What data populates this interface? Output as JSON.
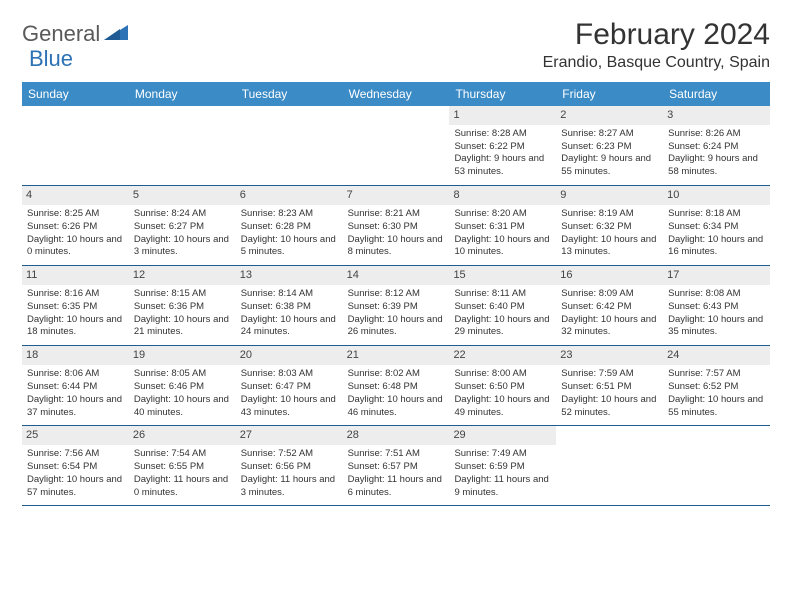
{
  "brand": {
    "text1": "General",
    "text2": "Blue",
    "logo_color": "#2d72b5"
  },
  "header": {
    "month_title": "February 2024",
    "location": "Erandio, Basque Country, Spain"
  },
  "colors": {
    "header_bg": "#3b8bc7",
    "header_text": "#ffffff",
    "row_border": "#1f5d8f",
    "daynum_bg": "#ededed",
    "body_text": "#333333"
  },
  "day_names": [
    "Sunday",
    "Monday",
    "Tuesday",
    "Wednesday",
    "Thursday",
    "Friday",
    "Saturday"
  ],
  "weeks": [
    [
      {
        "n": "",
        "sunrise": "",
        "sunset": "",
        "daylight": ""
      },
      {
        "n": "",
        "sunrise": "",
        "sunset": "",
        "daylight": ""
      },
      {
        "n": "",
        "sunrise": "",
        "sunset": "",
        "daylight": ""
      },
      {
        "n": "",
        "sunrise": "",
        "sunset": "",
        "daylight": ""
      },
      {
        "n": "1",
        "sunrise": "Sunrise: 8:28 AM",
        "sunset": "Sunset: 6:22 PM",
        "daylight": "Daylight: 9 hours and 53 minutes."
      },
      {
        "n": "2",
        "sunrise": "Sunrise: 8:27 AM",
        "sunset": "Sunset: 6:23 PM",
        "daylight": "Daylight: 9 hours and 55 minutes."
      },
      {
        "n": "3",
        "sunrise": "Sunrise: 8:26 AM",
        "sunset": "Sunset: 6:24 PM",
        "daylight": "Daylight: 9 hours and 58 minutes."
      }
    ],
    [
      {
        "n": "4",
        "sunrise": "Sunrise: 8:25 AM",
        "sunset": "Sunset: 6:26 PM",
        "daylight": "Daylight: 10 hours and 0 minutes."
      },
      {
        "n": "5",
        "sunrise": "Sunrise: 8:24 AM",
        "sunset": "Sunset: 6:27 PM",
        "daylight": "Daylight: 10 hours and 3 minutes."
      },
      {
        "n": "6",
        "sunrise": "Sunrise: 8:23 AM",
        "sunset": "Sunset: 6:28 PM",
        "daylight": "Daylight: 10 hours and 5 minutes."
      },
      {
        "n": "7",
        "sunrise": "Sunrise: 8:21 AM",
        "sunset": "Sunset: 6:30 PM",
        "daylight": "Daylight: 10 hours and 8 minutes."
      },
      {
        "n": "8",
        "sunrise": "Sunrise: 8:20 AM",
        "sunset": "Sunset: 6:31 PM",
        "daylight": "Daylight: 10 hours and 10 minutes."
      },
      {
        "n": "9",
        "sunrise": "Sunrise: 8:19 AM",
        "sunset": "Sunset: 6:32 PM",
        "daylight": "Daylight: 10 hours and 13 minutes."
      },
      {
        "n": "10",
        "sunrise": "Sunrise: 8:18 AM",
        "sunset": "Sunset: 6:34 PM",
        "daylight": "Daylight: 10 hours and 16 minutes."
      }
    ],
    [
      {
        "n": "11",
        "sunrise": "Sunrise: 8:16 AM",
        "sunset": "Sunset: 6:35 PM",
        "daylight": "Daylight: 10 hours and 18 minutes."
      },
      {
        "n": "12",
        "sunrise": "Sunrise: 8:15 AM",
        "sunset": "Sunset: 6:36 PM",
        "daylight": "Daylight: 10 hours and 21 minutes."
      },
      {
        "n": "13",
        "sunrise": "Sunrise: 8:14 AM",
        "sunset": "Sunset: 6:38 PM",
        "daylight": "Daylight: 10 hours and 24 minutes."
      },
      {
        "n": "14",
        "sunrise": "Sunrise: 8:12 AM",
        "sunset": "Sunset: 6:39 PM",
        "daylight": "Daylight: 10 hours and 26 minutes."
      },
      {
        "n": "15",
        "sunrise": "Sunrise: 8:11 AM",
        "sunset": "Sunset: 6:40 PM",
        "daylight": "Daylight: 10 hours and 29 minutes."
      },
      {
        "n": "16",
        "sunrise": "Sunrise: 8:09 AM",
        "sunset": "Sunset: 6:42 PM",
        "daylight": "Daylight: 10 hours and 32 minutes."
      },
      {
        "n": "17",
        "sunrise": "Sunrise: 8:08 AM",
        "sunset": "Sunset: 6:43 PM",
        "daylight": "Daylight: 10 hours and 35 minutes."
      }
    ],
    [
      {
        "n": "18",
        "sunrise": "Sunrise: 8:06 AM",
        "sunset": "Sunset: 6:44 PM",
        "daylight": "Daylight: 10 hours and 37 minutes."
      },
      {
        "n": "19",
        "sunrise": "Sunrise: 8:05 AM",
        "sunset": "Sunset: 6:46 PM",
        "daylight": "Daylight: 10 hours and 40 minutes."
      },
      {
        "n": "20",
        "sunrise": "Sunrise: 8:03 AM",
        "sunset": "Sunset: 6:47 PM",
        "daylight": "Daylight: 10 hours and 43 minutes."
      },
      {
        "n": "21",
        "sunrise": "Sunrise: 8:02 AM",
        "sunset": "Sunset: 6:48 PM",
        "daylight": "Daylight: 10 hours and 46 minutes."
      },
      {
        "n": "22",
        "sunrise": "Sunrise: 8:00 AM",
        "sunset": "Sunset: 6:50 PM",
        "daylight": "Daylight: 10 hours and 49 minutes."
      },
      {
        "n": "23",
        "sunrise": "Sunrise: 7:59 AM",
        "sunset": "Sunset: 6:51 PM",
        "daylight": "Daylight: 10 hours and 52 minutes."
      },
      {
        "n": "24",
        "sunrise": "Sunrise: 7:57 AM",
        "sunset": "Sunset: 6:52 PM",
        "daylight": "Daylight: 10 hours and 55 minutes."
      }
    ],
    [
      {
        "n": "25",
        "sunrise": "Sunrise: 7:56 AM",
        "sunset": "Sunset: 6:54 PM",
        "daylight": "Daylight: 10 hours and 57 minutes."
      },
      {
        "n": "26",
        "sunrise": "Sunrise: 7:54 AM",
        "sunset": "Sunset: 6:55 PM",
        "daylight": "Daylight: 11 hours and 0 minutes."
      },
      {
        "n": "27",
        "sunrise": "Sunrise: 7:52 AM",
        "sunset": "Sunset: 6:56 PM",
        "daylight": "Daylight: 11 hours and 3 minutes."
      },
      {
        "n": "28",
        "sunrise": "Sunrise: 7:51 AM",
        "sunset": "Sunset: 6:57 PM",
        "daylight": "Daylight: 11 hours and 6 minutes."
      },
      {
        "n": "29",
        "sunrise": "Sunrise: 7:49 AM",
        "sunset": "Sunset: 6:59 PM",
        "daylight": "Daylight: 11 hours and 9 minutes."
      },
      {
        "n": "",
        "sunrise": "",
        "sunset": "",
        "daylight": ""
      },
      {
        "n": "",
        "sunrise": "",
        "sunset": "",
        "daylight": ""
      }
    ]
  ]
}
